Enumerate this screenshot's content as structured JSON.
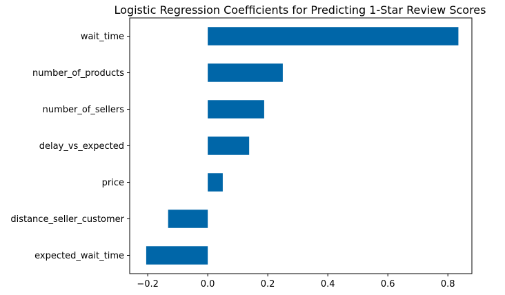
{
  "chart_data": {
    "type": "bar",
    "orientation": "horizontal",
    "title": "Logistic Regression Coefficients for Predicting 1-Star Review Scores",
    "xlabel": "",
    "ylabel": "",
    "categories": [
      "wait_time",
      "number_of_products",
      "number_of_sellers",
      "delay_vs_expected",
      "price",
      "distance_seller_customer",
      "expected_wait_time"
    ],
    "values": [
      0.835,
      0.25,
      0.188,
      0.138,
      0.05,
      -0.132,
      -0.205
    ],
    "xlim": [
      -0.26,
      0.88
    ],
    "xticks": [
      -0.2,
      0.0,
      0.2,
      0.4,
      0.6,
      0.8
    ],
    "xtick_labels": [
      "−0.2",
      "0.0",
      "0.2",
      "0.4",
      "0.6",
      "0.8"
    ],
    "grid": false,
    "legend": "none",
    "bar_color": "#0066a8"
  }
}
